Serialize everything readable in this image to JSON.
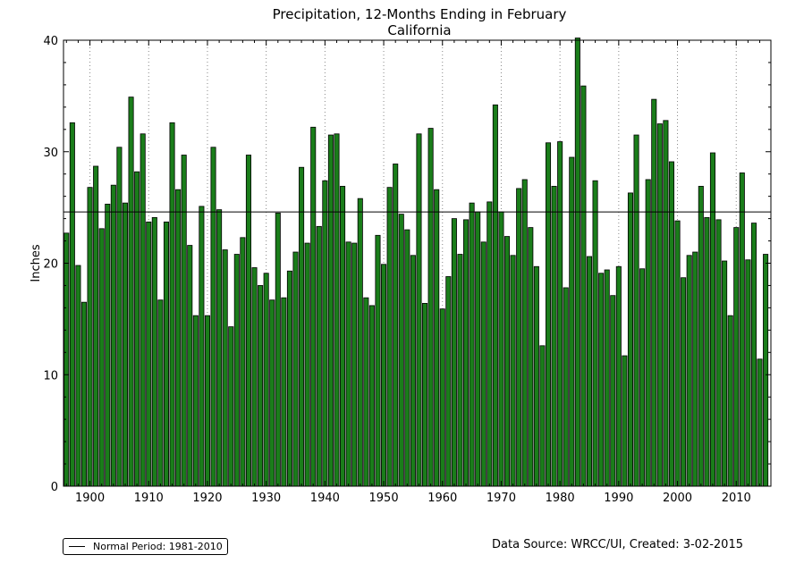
{
  "chart_data": {
    "type": "bar",
    "title": "Precipitation, 12-Months Ending in February",
    "subtitle": "California",
    "xlabel": "",
    "ylabel": "Inches",
    "x_start": 1896,
    "years": [
      1896,
      1897,
      1898,
      1899,
      1900,
      1901,
      1902,
      1903,
      1904,
      1905,
      1906,
      1907,
      1908,
      1909,
      1910,
      1911,
      1912,
      1913,
      1914,
      1915,
      1916,
      1917,
      1918,
      1919,
      1920,
      1921,
      1922,
      1923,
      1924,
      1925,
      1926,
      1927,
      1928,
      1929,
      1930,
      1931,
      1932,
      1933,
      1934,
      1935,
      1936,
      1937,
      1938,
      1939,
      1940,
      1941,
      1942,
      1943,
      1944,
      1945,
      1946,
      1947,
      1948,
      1949,
      1950,
      1951,
      1952,
      1953,
      1954,
      1955,
      1956,
      1957,
      1958,
      1959,
      1960,
      1961,
      1962,
      1963,
      1964,
      1965,
      1966,
      1967,
      1968,
      1969,
      1970,
      1971,
      1972,
      1973,
      1974,
      1975,
      1976,
      1977,
      1978,
      1979,
      1980,
      1981,
      1982,
      1983,
      1984,
      1985,
      1986,
      1987,
      1988,
      1989,
      1990,
      1991,
      1992,
      1993,
      1994,
      1995,
      1996,
      1997,
      1998,
      1999,
      2000,
      2001,
      2002,
      2003,
      2004,
      2005,
      2006,
      2007,
      2008,
      2009,
      2010,
      2011,
      2012,
      2013,
      2014,
      2015
    ],
    "values": [
      22.7,
      32.6,
      19.8,
      16.5,
      26.8,
      28.7,
      23.1,
      25.3,
      27.0,
      30.4,
      25.4,
      34.9,
      28.2,
      31.6,
      23.7,
      24.1,
      16.7,
      23.7,
      32.6,
      26.6,
      29.7,
      21.6,
      15.3,
      25.1,
      15.3,
      30.4,
      24.8,
      21.2,
      14.3,
      20.8,
      22.3,
      29.7,
      19.6,
      18.0,
      19.1,
      16.7,
      24.5,
      16.9,
      19.3,
      21.0,
      28.6,
      21.8,
      32.2,
      23.3,
      27.4,
      31.5,
      31.6,
      26.9,
      21.9,
      21.8,
      25.8,
      16.9,
      16.2,
      22.5,
      19.9,
      26.8,
      28.9,
      24.4,
      23.0,
      20.7,
      31.6,
      16.4,
      32.1,
      26.6,
      15.9,
      18.8,
      24.0,
      20.8,
      23.9,
      25.4,
      24.6,
      21.9,
      25.5,
      34.2,
      24.6,
      22.4,
      20.7,
      26.7,
      27.5,
      23.2,
      19.7,
      12.6,
      30.8,
      26.9,
      30.9,
      17.8,
      29.5,
      40.2,
      35.9,
      20.6,
      27.4,
      19.1,
      19.4,
      17.1,
      19.7,
      11.7,
      26.3,
      31.5,
      19.5,
      27.5,
      34.7,
      32.5,
      32.8,
      29.1,
      23.8,
      18.7,
      20.7,
      21.0,
      26.9,
      24.1,
      29.9,
      23.9,
      20.2,
      15.3,
      23.2,
      28.1,
      20.3,
      23.6,
      11.4,
      20.8
    ],
    "xticks": [
      "1900",
      "1910",
      "1920",
      "1930",
      "1940",
      "1950",
      "1960",
      "1970",
      "1980",
      "1990",
      "2000",
      "2010"
    ],
    "yticks": [
      "0",
      "10",
      "20",
      "30",
      "40"
    ],
    "ylim": [
      0,
      40
    ],
    "xlim": [
      1895.5,
      2015.9
    ],
    "normal_value": 24.6,
    "grid": "x-dotted",
    "legend": {
      "position": "bottom-left",
      "label": "Normal Period: 1981-2010"
    },
    "source": "Data Source: WRCC/UI, Created: 3-02-2015",
    "colors": {
      "bar_fill": "#1a7d1a",
      "bar_edge": "#000000",
      "normal_line": "#000000",
      "grid": "#888888"
    }
  }
}
